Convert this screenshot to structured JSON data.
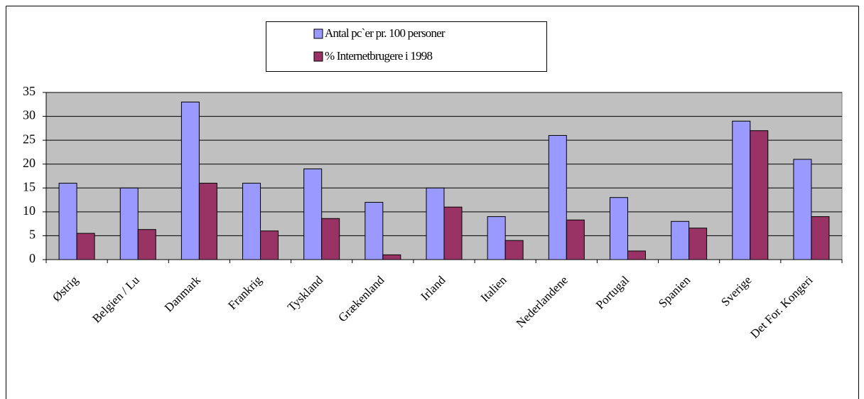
{
  "chart_data": {
    "type": "bar",
    "categories": [
      "Østrig",
      "Belgien / Lu",
      "Danmark",
      "Frankrig",
      "Tyskland",
      "Grækenland",
      "Irland",
      "Italien",
      "Nederlandene",
      "Portugal",
      "Spanien",
      "Sverige",
      "Det For. Kongeri"
    ],
    "series": [
      {
        "name": "Antal pc`er pr. 100 personer",
        "color": "#9999ff",
        "values": [
          16,
          15,
          33,
          16,
          19,
          12,
          15,
          9,
          26,
          13,
          8,
          29,
          21
        ]
      },
      {
        "name": "% Internetbrugere i 1998",
        "color": "#993366",
        "values": [
          5.5,
          6.3,
          16,
          6,
          8.6,
          1,
          11,
          4,
          8.3,
          1.8,
          6.6,
          27,
          9
        ]
      }
    ],
    "ylim": [
      0,
      35
    ],
    "yticks": [
      0,
      5,
      10,
      15,
      20,
      25,
      30,
      35
    ],
    "grid": true,
    "legend": "top"
  }
}
